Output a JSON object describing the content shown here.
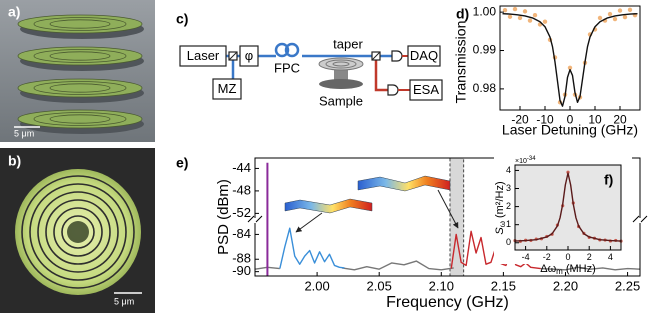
{
  "panels": {
    "a": {
      "label": "a)",
      "scale_bar": "5 μm"
    },
    "b": {
      "label": "b)",
      "scale_bar": "5 μm"
    },
    "c": {
      "label": "c)",
      "laser": "Laser",
      "mz": "MZ",
      "phase": "φ",
      "fpc": "FPC",
      "taper": "taper",
      "sample": "Sample",
      "daq": "DAQ",
      "esa": "ESA"
    }
  },
  "chart_data": [
    {
      "type": "scatter",
      "panel_label": "d)",
      "xlabel": "Laser Detuning (GHz)",
      "ylabel": "Transmission",
      "xlim": [
        -28,
        28
      ],
      "ylim": [
        0.9745,
        1.0016
      ],
      "xticks": [
        -20,
        -10,
        0,
        10,
        20
      ],
      "yticks": [
        0.98,
        0.99,
        {
          "value": 1.0,
          "label": "1.00"
        }
      ],
      "series": [
        {
          "style": "markers",
          "color": "#eea35a",
          "x": [
            -26,
            -24,
            -22,
            -20,
            -18,
            -16,
            -14,
            -12,
            -10,
            -8,
            -6,
            -4,
            -2,
            0,
            2,
            4,
            6,
            8,
            10,
            12,
            14,
            16,
            18,
            20,
            22,
            24,
            26
          ],
          "values": [
            1.0005,
            0.9988,
            1.0008,
            0.9985,
            1.0002,
            0.9978,
            0.9992,
            0.9968,
            0.9975,
            0.9928,
            0.9882,
            0.9765,
            0.9785,
            0.9855,
            0.9785,
            0.9778,
            0.9868,
            0.9942,
            0.9955,
            0.9985,
            0.9978,
            0.9995,
            0.9982,
            1.0004,
            0.9987,
            1.0006,
            0.9992
          ]
        },
        {
          "style": "line",
          "color": "#111111",
          "x": [
            -27,
            -24,
            -21,
            -18,
            -15,
            -12,
            -10,
            -8,
            -7,
            -6,
            -5,
            -4,
            -3,
            -2,
            -1,
            0,
            1,
            2,
            3,
            4,
            5,
            6,
            7,
            8,
            10,
            12,
            15,
            18,
            21,
            24,
            27
          ],
          "values": [
            0.9996,
            0.9995,
            0.9993,
            0.999,
            0.9985,
            0.9975,
            0.9962,
            0.9935,
            0.991,
            0.987,
            0.982,
            0.977,
            0.9755,
            0.978,
            0.983,
            0.985,
            0.9835,
            0.979,
            0.9765,
            0.978,
            0.9825,
            0.987,
            0.991,
            0.9935,
            0.9962,
            0.9975,
            0.9985,
            0.999,
            0.9993,
            0.9995,
            0.9996
          ]
        }
      ]
    },
    {
      "type": "line",
      "panel_label": "e)",
      "xlabel": "Frequency (GHz)",
      "ylabel": "PSD (dBm)",
      "xlim": [
        1.95,
        2.26
      ],
      "ylim_segments": [
        [
          -90.7,
          -82
        ],
        [
          -53,
          -42.5
        ]
      ],
      "xticks": [
        {
          "value": 2.0,
          "label": "2.00"
        },
        2.05,
        {
          "value": 2.1,
          "label": "2.10"
        },
        2.15,
        {
          "value": 2.2,
          "label": "2.20"
        },
        2.25
      ],
      "yticks": [
        -90,
        -88,
        -84,
        -52,
        -48,
        -44
      ],
      "highlight": [
        2.107,
        2.118
      ],
      "series": [
        {
          "style": "line",
          "color": "#777777",
          "x": [
            1.95,
            1.96,
            1.97,
            1.98,
            1.99,
            2.0,
            2.01,
            2.02,
            2.03,
            2.04,
            2.05,
            2.06,
            2.07,
            2.08,
            2.09,
            2.1,
            2.11,
            2.12,
            2.13,
            2.14,
            2.15,
            2.16,
            2.17,
            2.18,
            2.19,
            2.2,
            2.21,
            2.22,
            2.23,
            2.24,
            2.25,
            2.26
          ],
          "values": [
            -89.6,
            -89.3,
            -89.5,
            null,
            null,
            null,
            null,
            -89.4,
            -89.7,
            -89.2,
            -89.6,
            -88.6,
            -88.9,
            -88.3,
            -89.5,
            -89.7,
            -89.4,
            null,
            null,
            null,
            null,
            null,
            null,
            -89.5,
            -89.6,
            -89.7,
            -89.3,
            -89.6,
            -89.4,
            -89.7,
            -89.5,
            -89.6
          ]
        },
        {
          "style": "line",
          "color": "#3a8fd9",
          "x": [
            1.97,
            1.974,
            1.978,
            1.982,
            1.986,
            1.99,
            1.994,
            1.998,
            2.002,
            2.006,
            2.01,
            2.014,
            2.018,
            2.022
          ],
          "values": [
            -89.5,
            -86,
            -83,
            -87.5,
            -88.8,
            -87.5,
            -86.6,
            -88.6,
            -86.8,
            -88.4,
            -87.2,
            -89.0,
            -89.3,
            -89.4
          ]
        },
        {
          "style": "line",
          "color": "#c8282d",
          "x": [
            2.108,
            2.112,
            2.116,
            2.12,
            2.124,
            2.128,
            2.132,
            2.136,
            2.14,
            2.144,
            2.148,
            2.152,
            2.156,
            2.16,
            2.164,
            2.168,
            2.172,
            2.176,
            2.18
          ],
          "values": [
            -89.5,
            -84,
            -88.5,
            -89,
            -83.5,
            -87,
            -84.5,
            -88.8,
            -88.5,
            -86,
            -88.7,
            -89,
            -86.8,
            -88.9,
            -89.2,
            -88.6,
            -89.3,
            -89.4,
            -89.5
          ]
        },
        {
          "style": "stick",
          "color": "#8a2a9a",
          "x": [
            1.96
          ],
          "values": [
            -43
          ]
        }
      ]
    },
    {
      "type": "line",
      "panel_label": "f)",
      "xlabel": "Δω",
      "xlabel_sub": "m",
      "xlabel_unit": "(MHz)",
      "ylabel": "S",
      "ylabel_sub": "ω",
      "ylabel_unit": "(m²/Hz)",
      "y_multiplier": "×10",
      "y_multiplier_exp": "-34",
      "xlim": [
        -5,
        5
      ],
      "ylim": [
        -0.4,
        4.3
      ],
      "xticks": [
        -4,
        -2,
        0,
        2,
        4
      ],
      "yticks": [
        0,
        1,
        2,
        3,
        4
      ],
      "series": [
        {
          "style": "markers",
          "color": "#c0392b",
          "x": [
            -5,
            -4.5,
            -4,
            -3.5,
            -3,
            -2.5,
            -2,
            -1.5,
            -1,
            -0.5,
            0,
            0.5,
            1,
            1.5,
            2,
            2.5,
            3,
            3.5,
            4,
            4.5,
            5
          ],
          "values": [
            0.12,
            0.08,
            0.14,
            0.13,
            0.2,
            0.22,
            0.35,
            0.47,
            0.98,
            2.05,
            3.9,
            2.2,
            0.9,
            0.52,
            0.3,
            0.25,
            0.16,
            0.15,
            0.1,
            0.13,
            0.09
          ]
        },
        {
          "style": "line",
          "color": "#5a1a1a",
          "x": [
            -5,
            -4,
            -3,
            -2,
            -1.5,
            -1,
            -0.75,
            -0.5,
            -0.25,
            0,
            0.25,
            0.5,
            0.75,
            1,
            1.5,
            2,
            3,
            4,
            5
          ],
          "values": [
            0.095,
            0.12,
            0.17,
            0.32,
            0.5,
            0.93,
            1.38,
            2.13,
            3.2,
            3.85,
            3.2,
            2.13,
            1.38,
            0.93,
            0.5,
            0.32,
            0.17,
            0.12,
            0.095
          ]
        }
      ]
    }
  ]
}
